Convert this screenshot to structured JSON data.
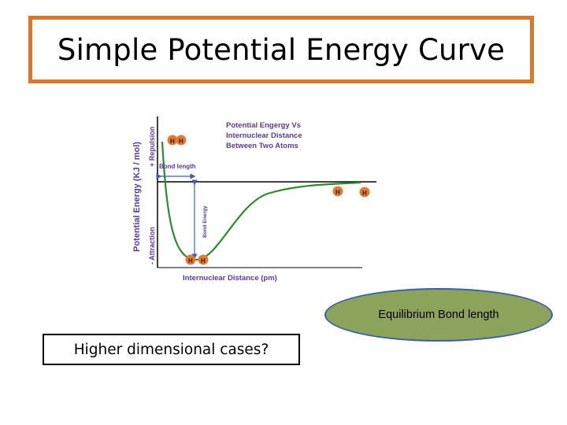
{
  "title": "Simple Potential Energy Curve",
  "figure": {
    "y_axis_label": "Potential Energy (KJ / mol)",
    "y_positive_label": "+ Repulsion",
    "y_negative_label": "- Attraction",
    "x_axis_label": "Internuclear Distance (pm)",
    "heading_line1": "Potential Engergy Vs",
    "heading_line2": "Internuclear Distance",
    "heading_line3": "Between Two Atoms",
    "bond_length_label": "Bond length",
    "bond_energy_label": "Bond Energy",
    "atom_label": "H",
    "curve_color": "#2e8b2e",
    "atom_color": "#e07b39"
  },
  "callout": {
    "label": "Equilibrium Bond  length"
  },
  "question": {
    "label": "Higher dimensional cases?"
  }
}
